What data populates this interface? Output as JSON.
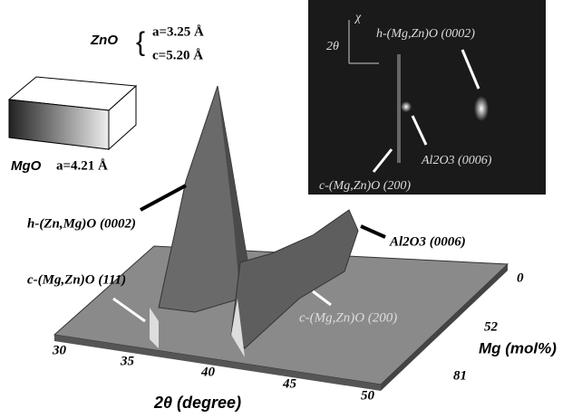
{
  "crystal_inset": {
    "zno_label": "ZnO",
    "zno_a": "a=3.25 Å",
    "zno_c": "c=5.20 Å",
    "mgo_label": "MgO",
    "mgo_a": "a=4.21 Å"
  },
  "image_inset": {
    "chi_axis": "χ",
    "two_theta_axis": "2θ",
    "h_peak": "h-(Mg,Zn)O (0002)",
    "al_peak": "Al2O3 (0006)",
    "c_peak": "c-(Mg,Zn)O (200)"
  },
  "annotations": {
    "h_peak": "h-(Zn,Mg)O (0002)",
    "al_peak": "Al2O3 (0006)",
    "c111_peak": "c-(Mg,Zn)O (111)",
    "c200_peak": "c-(Mg,Zn)O (200)"
  },
  "x_axis": {
    "label": "2θ (degree)",
    "ticks": [
      "30",
      "35",
      "40",
      "45",
      "50"
    ]
  },
  "y_axis": {
    "label": "Mg (mol%)",
    "ticks": [
      "0",
      "52",
      "81"
    ]
  }
}
